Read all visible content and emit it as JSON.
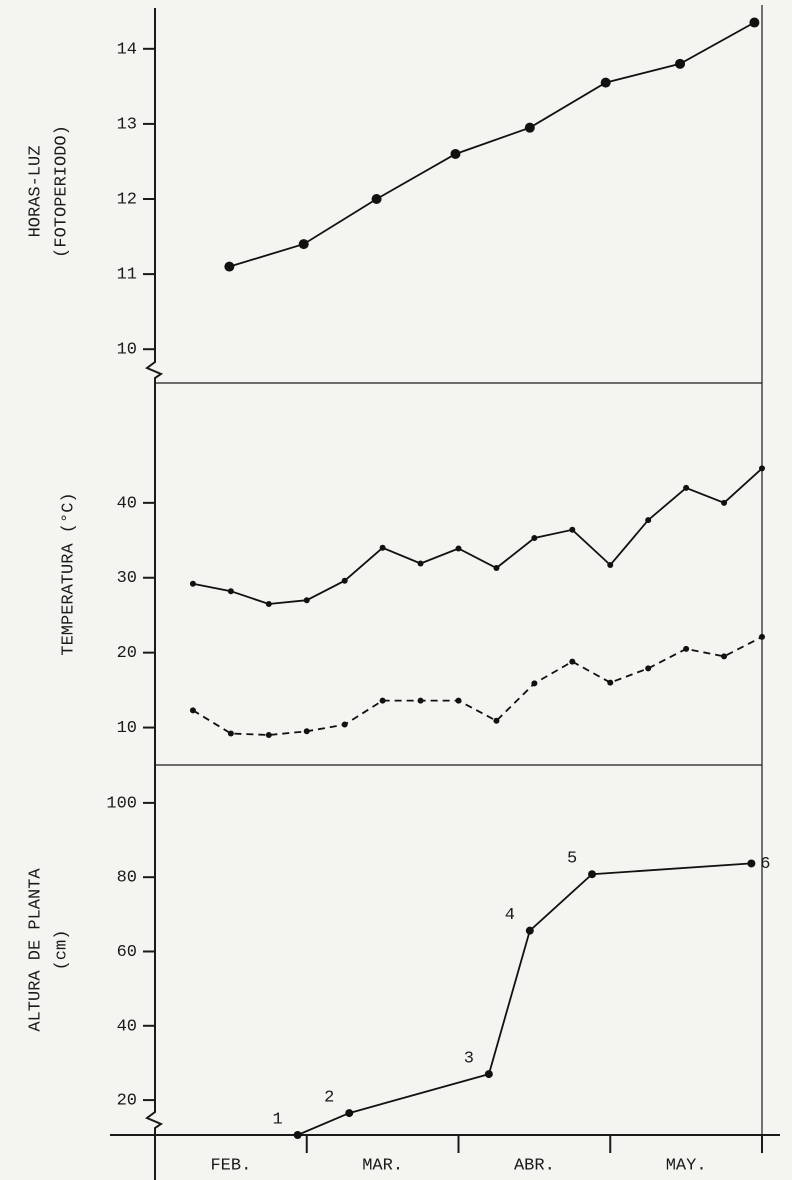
{
  "chart_data": [
    {
      "type": "line",
      "ylabel": [
        "HORAS-LUZ",
        "(FOTOPERIODO)"
      ],
      "xlim": [
        0,
        4
      ],
      "ylim": [
        9.55,
        14.65
      ],
      "yticks": [
        10,
        11,
        12,
        13,
        14
      ],
      "series": [
        {
          "color": "#111111",
          "dashed": false,
          "marker": 5,
          "x": [
            0.49,
            0.98,
            1.46,
            1.98,
            2.47,
            2.97,
            3.46,
            3.95
          ],
          "values": [
            11.1,
            11.4,
            12.0,
            12.6,
            12.95,
            13.55,
            13.8,
            14.35
          ]
        }
      ]
    },
    {
      "type": "line",
      "ylabel": [
        "TEMPERATURA (°C)"
      ],
      "xlim": [
        0,
        4
      ],
      "ylim": [
        5,
        56
      ],
      "yticks": [
        10,
        20,
        30,
        40
      ],
      "series": [
        {
          "color": "#111111",
          "dashed": false,
          "marker": 3,
          "x": [
            0.25,
            0.5,
            0.75,
            1.0,
            1.25,
            1.5,
            1.75,
            2.0,
            2.25,
            2.5,
            2.75,
            3.0,
            3.25,
            3.5,
            3.75,
            4.0
          ],
          "values": [
            29.2,
            28.2,
            26.5,
            27,
            29.6,
            34,
            31.9,
            33.9,
            31.3,
            35.3,
            36.4,
            31.7,
            37.7,
            42,
            40,
            44.6
          ]
        },
        {
          "color": "#111111",
          "dashed": true,
          "marker": 3,
          "x": [
            0.25,
            0.5,
            0.75,
            1.0,
            1.25,
            1.5,
            1.75,
            2.0,
            2.25,
            2.5,
            2.75,
            3.0,
            3.25,
            3.5,
            3.75,
            4.0
          ],
          "values": [
            12.3,
            9.2,
            9,
            9.5,
            10.4,
            13.6,
            13.6,
            13.6,
            10.9,
            15.9,
            18.8,
            16,
            17.9,
            20.5,
            19.5,
            22.1
          ]
        }
      ]
    },
    {
      "type": "line",
      "ylabel": [
        "ALTURA DE PLANTA",
        "(cm)"
      ],
      "xlim": [
        0,
        4
      ],
      "ylim": [
        10.6,
        110.2
      ],
      "yticks": [
        20,
        40,
        60,
        80,
        100
      ],
      "categories": [
        "FEB.",
        "MAR.",
        "ABR.",
        "MAY."
      ],
      "series": [
        {
          "color": "#111111",
          "dashed": false,
          "marker": 4,
          "x": [
            0.94,
            1.28,
            2.2,
            2.47,
            2.88,
            3.93
          ],
          "values": [
            10.6,
            16.5,
            27,
            65.6,
            80.8,
            83.7
          ],
          "point_labels": [
            "1",
            "2",
            "3",
            "4",
            "5",
            "6"
          ]
        }
      ]
    }
  ]
}
